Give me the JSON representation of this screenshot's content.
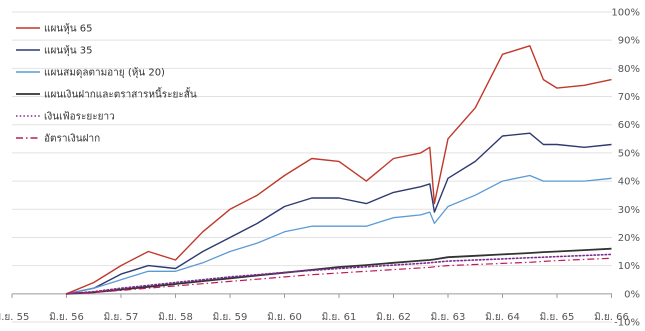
{
  "chart_data": {
    "type": "line",
    "title": "",
    "xlabel": "",
    "ylabel": "",
    "x_ticks": [
      "มิ.ย. 55",
      "มิ.ย. 56",
      "มิ.ย. 57",
      "มิ.ย. 58",
      "มิ.ย. 59",
      "มิ.ย. 60",
      "มิ.ย. 61",
      "มิ.ย. 62",
      "มิ.ย. 63",
      "มิ.ย. 64",
      "มิ.ย. 65",
      "มิ.ย. 66"
    ],
    "x": [
      "มิ.ย. 56",
      "ธ.ค. 56",
      "มิ.ย. 57",
      "ธ.ค. 57",
      "มิ.ย. 58",
      "ธ.ค. 58",
      "มิ.ย. 59",
      "ธ.ค. 59",
      "มิ.ย. 60",
      "ธ.ค. 60",
      "มิ.ย. 61",
      "ธ.ค. 61",
      "มิ.ย. 62",
      "ธ.ค. 62",
      "ก.พ. 63",
      "มี.ค. 63",
      "มิ.ย. 63",
      "ธ.ค. 63",
      "มิ.ย. 64",
      "ธ.ค. 64",
      "มี.ค. 65",
      "มิ.ย. 65",
      "ธ.ค. 65",
      "มิ.ย. 66"
    ],
    "y_ticks": [
      "-10%",
      "0%",
      "10%",
      "20%",
      "30%",
      "40%",
      "50%",
      "60%",
      "70%",
      "80%",
      "90%",
      "100%"
    ],
    "ylim": [
      -10,
      100
    ],
    "y_unit": "%",
    "grid": "horizontal",
    "legend_position": "top-left",
    "series": [
      {
        "name": "แผนหุ้น 65",
        "color": "#c0392b",
        "style": "solid",
        "width": 1.4,
        "values": [
          0,
          4,
          10,
          15,
          12,
          22,
          30,
          35,
          42,
          48,
          47,
          40,
          48,
          50,
          52,
          32,
          55,
          66,
          85,
          88,
          76,
          73,
          74,
          76
        ]
      },
      {
        "name": "แผนหุ้น 35",
        "color": "#2e3a70",
        "style": "solid",
        "width": 1.4,
        "values": [
          0,
          2,
          7,
          10,
          9,
          15,
          20,
          25,
          31,
          34,
          34,
          32,
          36,
          38,
          39,
          29,
          41,
          47,
          56,
          57,
          53,
          53,
          52,
          53
        ]
      },
      {
        "name": "แผนสมดุลตามอายุ (หุ้น 20)",
        "color": "#5b9bd5",
        "style": "solid",
        "width": 1.3,
        "values": [
          0,
          2,
          5,
          8,
          8,
          11,
          15,
          18,
          22,
          24,
          24,
          24,
          27,
          28,
          29,
          25,
          31,
          35,
          40,
          42,
          40,
          40,
          40,
          41
        ]
      },
      {
        "name": "แผนเงินฝากและตราสารหนี้ระยะสั้น",
        "color": "#333333",
        "style": "solid",
        "width": 1.8,
        "values": [
          0,
          0.5,
          1.5,
          2.5,
          3.5,
          4.5,
          5.5,
          6.5,
          7.5,
          8.5,
          9.5,
          10.2,
          11,
          11.8,
          12,
          12.2,
          13,
          13.5,
          14,
          14.5,
          14.8,
          15,
          15.5,
          16
        ]
      },
      {
        "name": "เงินเฟ้อระยะยาว",
        "color": "#7b2d8e",
        "style": "dotted",
        "width": 1.6,
        "values": [
          0,
          0.8,
          2,
          3,
          4,
          5,
          6,
          6.8,
          7.6,
          8.3,
          9,
          9.6,
          10.2,
          10.8,
          11,
          11.2,
          11.6,
          12,
          12.4,
          12.8,
          13,
          13.2,
          13.6,
          14
        ]
      },
      {
        "name": "อัตราเงินฝาก",
        "color": "#c2185b",
        "style": "dashdot",
        "width": 1.2,
        "values": [
          0,
          0.5,
          1.2,
          2,
          2.8,
          3.6,
          4.4,
          5.2,
          6,
          6.8,
          7.4,
          8,
          8.6,
          9.2,
          9.4,
          9.6,
          10,
          10.4,
          10.8,
          11.2,
          11.5,
          11.8,
          12.2,
          12.6
        ]
      }
    ]
  }
}
